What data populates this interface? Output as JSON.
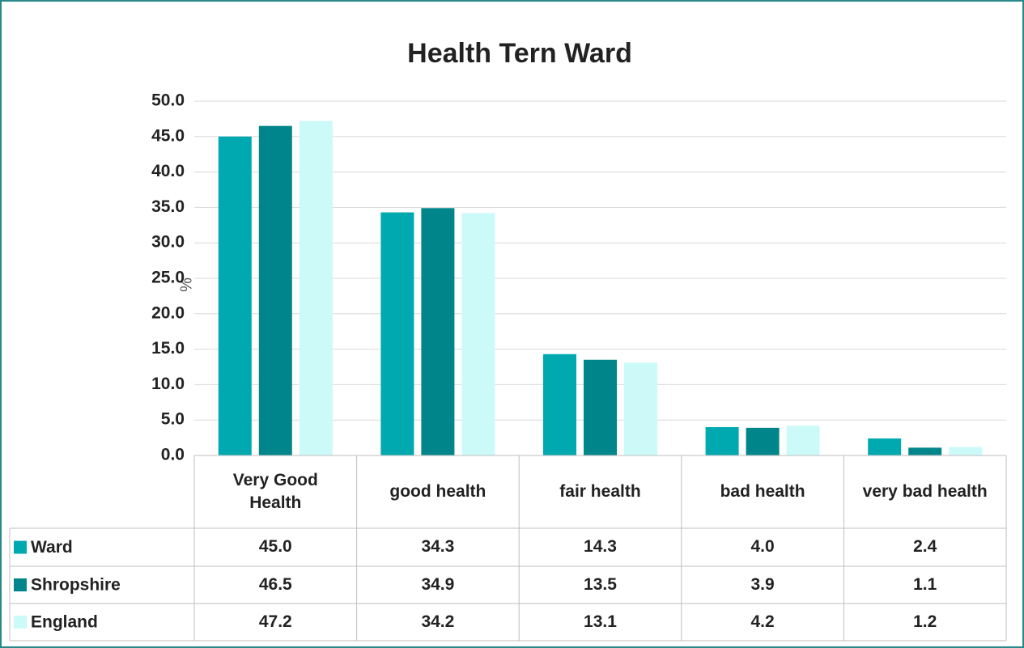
{
  "chart_data": {
    "type": "bar",
    "title": "Health Tern Ward",
    "y_label": "%",
    "categories": [
      "Very Good Health",
      "good health",
      "fair health",
      "bad health",
      "very bad health"
    ],
    "series": [
      {
        "name": "Ward",
        "color": "#00a9b0",
        "values": [
          45.0,
          34.3,
          14.3,
          4.0,
          2.4
        ],
        "value_labels": [
          "45.0",
          "34.3",
          "14.3",
          "4.0",
          "2.4"
        ]
      },
      {
        "name": "Shropshire",
        "color": "#00868a",
        "values": [
          46.5,
          34.9,
          13.5,
          3.9,
          1.1
        ],
        "value_labels": [
          "46.5",
          "34.9",
          "13.5",
          "3.9",
          "1.1"
        ]
      },
      {
        "name": "England",
        "color": "#ccfaf9",
        "values": [
          47.2,
          34.2,
          13.1,
          4.2,
          1.2
        ],
        "value_labels": [
          "47.2",
          "34.2",
          "13.1",
          "4.2",
          "1.2"
        ]
      }
    ],
    "ylim": [
      0,
      50
    ],
    "yticks": [
      {
        "value": 0,
        "label": "0.0"
      },
      {
        "value": 5,
        "label": "5.0"
      },
      {
        "value": 10,
        "label": "10.0"
      },
      {
        "value": 15,
        "label": "15.0"
      },
      {
        "value": 20,
        "label": "20.0"
      },
      {
        "value": 25,
        "label": "25.0"
      },
      {
        "value": 30,
        "label": "30.0"
      },
      {
        "value": 35,
        "label": "35.0"
      },
      {
        "value": 40,
        "label": "40.0"
      },
      {
        "value": 45,
        "label": "45.0"
      },
      {
        "value": 50,
        "label": "50.0"
      }
    ],
    "grid": true
  }
}
